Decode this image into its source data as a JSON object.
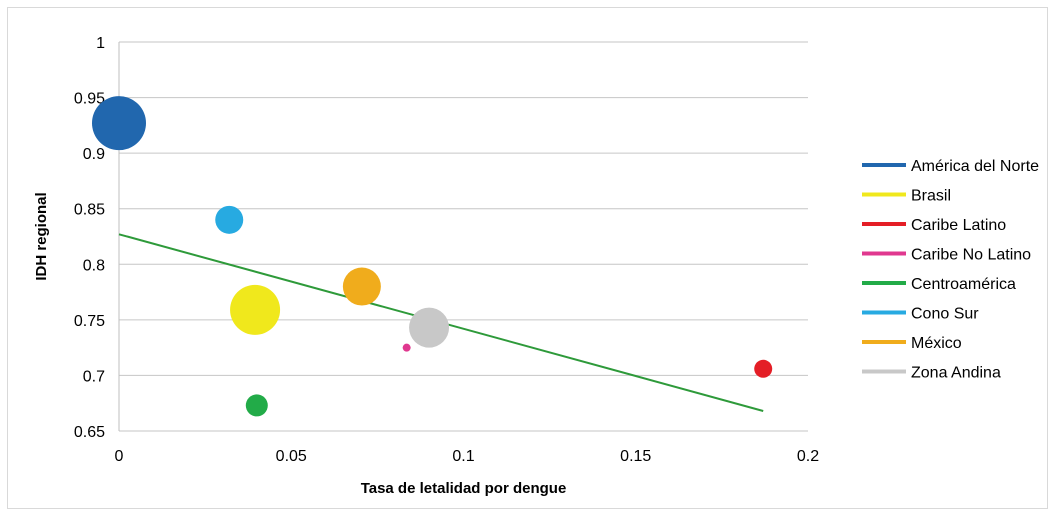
{
  "chart_data": {
    "type": "scatter",
    "title": "",
    "xlabel": "Tasa de letalidad por dengue",
    "ylabel": "IDH regional",
    "xlim": [
      0,
      0.2
    ],
    "ylim": [
      0.65,
      1
    ],
    "x_ticks": [
      "0",
      "0.05",
      "0.1",
      "0.15",
      "0.2"
    ],
    "y_ticks": [
      "0.65",
      "0.7",
      "0.75",
      "0.8",
      "0.85",
      "0.9",
      "0.95",
      "1"
    ],
    "grid": "horizontal",
    "legend_position": "right",
    "series": [
      {
        "name": "América del Norte",
        "color": "#2167ae",
        "x": 0.0,
        "y": 0.927,
        "size": 27
      },
      {
        "name": "Brasil",
        "color": "#f0e81c",
        "x": 0.0395,
        "y": 0.759,
        "size": 25
      },
      {
        "name": "Caribe Latino",
        "color": "#e41e26",
        "x": 0.187,
        "y": 0.706,
        "size": 9
      },
      {
        "name": "Caribe No Latino",
        "color": "#e0388f",
        "x": 0.0835,
        "y": 0.725,
        "size": 4
      },
      {
        "name": "Centroamérica",
        "color": "#22ab48",
        "x": 0.04,
        "y": 0.673,
        "size": 11
      },
      {
        "name": "Cono Sur",
        "color": "#27aae1",
        "x": 0.032,
        "y": 0.84,
        "size": 14
      },
      {
        "name": "México",
        "color": "#f0ac1c",
        "x": 0.0705,
        "y": 0.78,
        "size": 19
      },
      {
        "name": "Zona Andina",
        "color": "#c8c8c8",
        "x": 0.09,
        "y": 0.743,
        "size": 20
      }
    ],
    "trendline": {
      "color": "#2e9a3a",
      "x": [
        0,
        0.187
      ],
      "y": [
        0.827,
        0.668
      ]
    }
  }
}
